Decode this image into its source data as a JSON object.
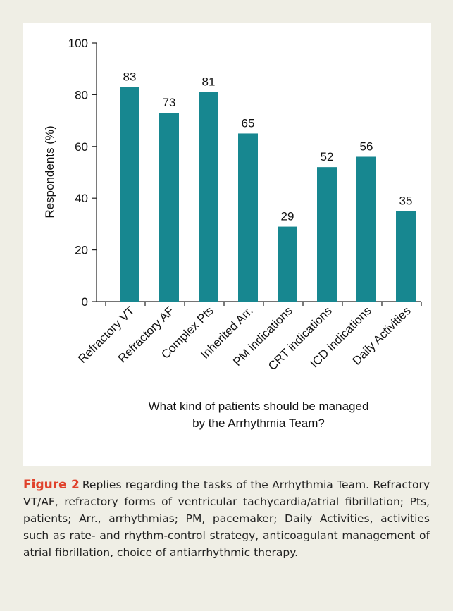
{
  "chart_data": {
    "type": "bar",
    "ylabel": "Respondents (%)",
    "xlabel": "What kind of patients should be managed by the Arrhythmia Team?",
    "categories": [
      "Refractory VT",
      "Refractory AF",
      "Complex Pts",
      "Inherited Arr.",
      "PM indications",
      "CRT indications",
      "ICD indications",
      "Daily Activities"
    ],
    "values": [
      83,
      73,
      81,
      65,
      29,
      52,
      56,
      35
    ],
    "color": "#178790",
    "ylim": [
      0,
      100
    ],
    "yticks": [
      0,
      20,
      40,
      60,
      80,
      100
    ],
    "grid": false
  },
  "caption_label": "Figure 2",
  "caption": "Replies regarding the tasks of the Arrhythmia Team. Refractory VT/AF, refractory forms of ventricular tachycardia/atrial fibrillation; Pts, patients; Arr., arrhythmias; PM, pacemaker; Daily Activities, activities such as rate- and rhythm-control strategy, anticoagulant management of atrial fibrillation, choice of antiarrhythmic therapy."
}
